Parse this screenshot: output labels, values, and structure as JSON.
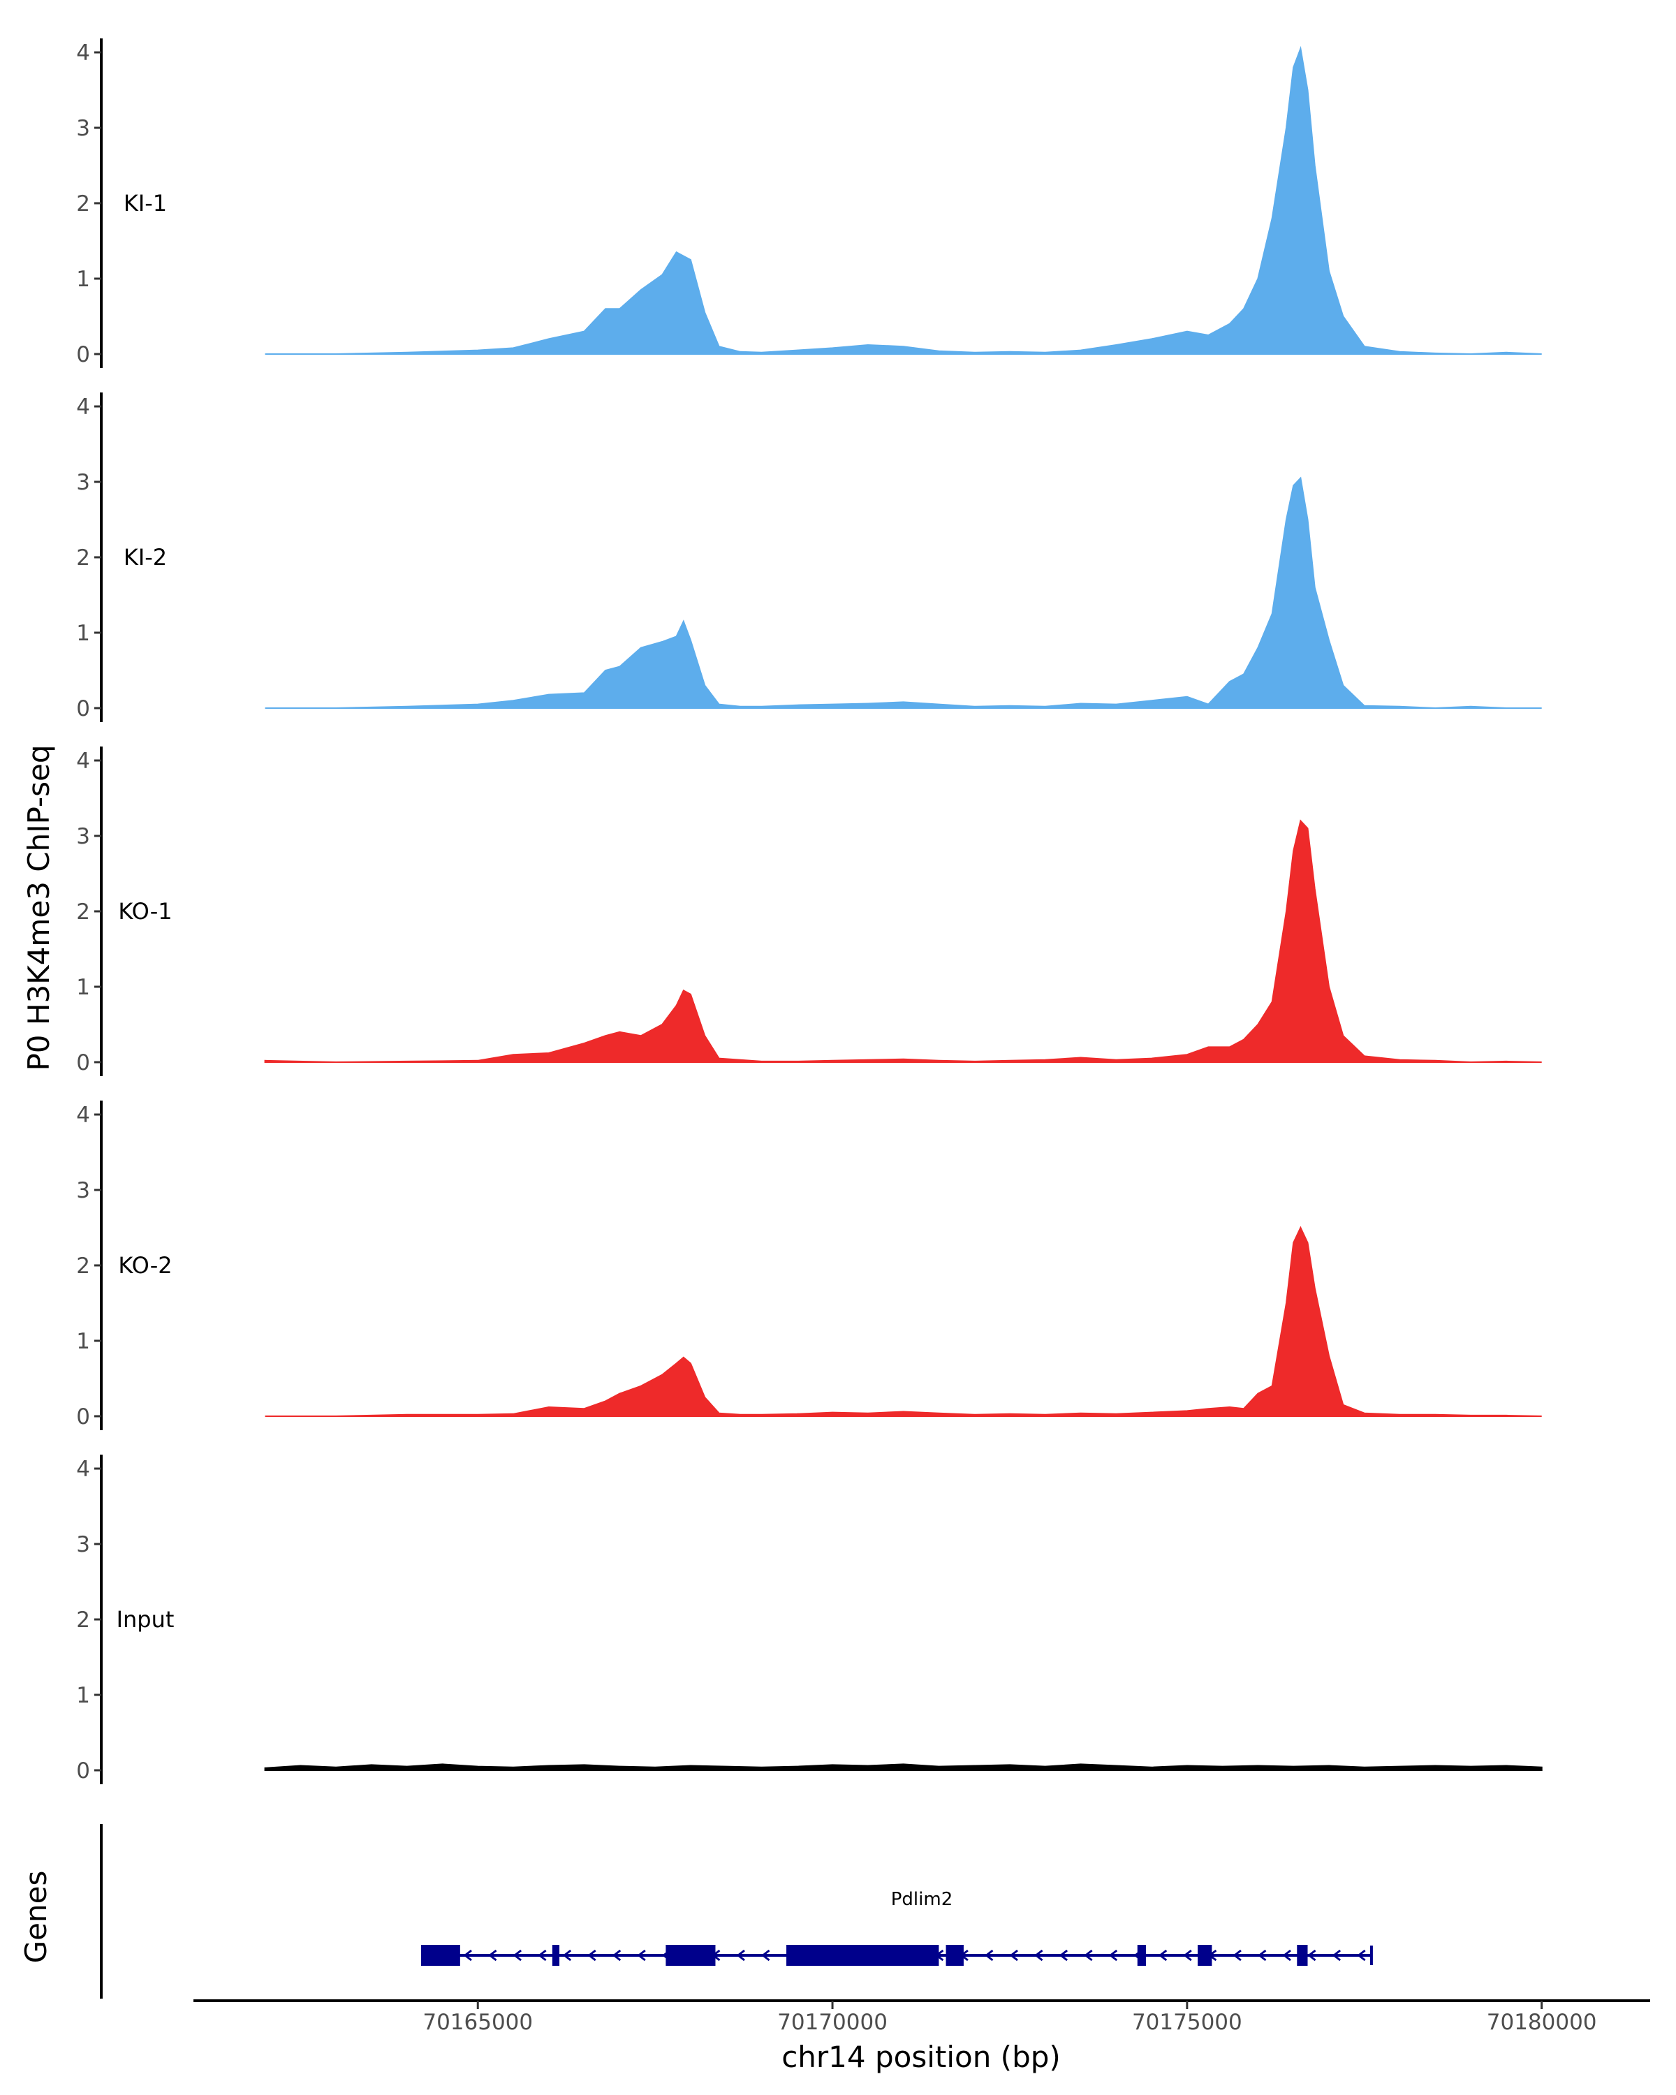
{
  "chart_data": {
    "type": "area",
    "ylabel": "P0 H3K4me3 ChIP-seq",
    "xlabel": "chr14 position (bp)",
    "xlim": [
      70161000,
      70181500
    ],
    "ylim": [
      0,
      4.2
    ],
    "y_ticks": [
      0,
      1,
      2,
      3,
      4
    ],
    "x_ticks": [
      70165000,
      70170000,
      70175000,
      70180000
    ],
    "x_tick_labels": [
      "70165000",
      "70170000",
      "70175000",
      "70180000"
    ],
    "grid": false,
    "tracks": [
      {
        "name": "KI-1",
        "color": "#5DADEC",
        "x": [
          70162000,
          70163000,
          70164000,
          70165000,
          70165500,
          70166000,
          70166500,
          70166800,
          70167000,
          70167300,
          70167600,
          70167800,
          70168000,
          70168200,
          70168400,
          70168700,
          70169000,
          70169500,
          70170000,
          70170500,
          70171000,
          70171500,
          70172000,
          70172500,
          70173000,
          70173500,
          70174000,
          70174500,
          70175000,
          70175300,
          70175600,
          70175800,
          70176000,
          70176200,
          70176400,
          70176500,
          70176600,
          70176700,
          70176800,
          70177000,
          70177200,
          70177500,
          70178000,
          70178500,
          70179000,
          70179500,
          70180000
        ],
        "y": [
          0.0,
          0.0,
          0.02,
          0.05,
          0.08,
          0.2,
          0.3,
          0.6,
          0.6,
          0.85,
          1.05,
          1.35,
          1.25,
          0.55,
          0.1,
          0.03,
          0.02,
          0.05,
          0.08,
          0.12,
          0.1,
          0.04,
          0.02,
          0.03,
          0.02,
          0.05,
          0.12,
          0.2,
          0.3,
          0.25,
          0.4,
          0.6,
          1.0,
          1.8,
          3.0,
          3.8,
          4.05,
          3.5,
          2.5,
          1.1,
          0.5,
          0.1,
          0.03,
          0.01,
          0.0,
          0.02,
          0.0
        ]
      },
      {
        "name": "KI-2",
        "color": "#5DADEC",
        "x": [
          70162000,
          70163000,
          70164000,
          70165000,
          70165500,
          70166000,
          70166500,
          70166800,
          70167000,
          70167300,
          70167600,
          70167800,
          70167900,
          70168000,
          70168200,
          70168400,
          70168700,
          70169000,
          70169500,
          70170000,
          70170500,
          70171000,
          70171500,
          70172000,
          70172500,
          70173000,
          70173500,
          70174000,
          70174500,
          70175000,
          70175300,
          70175600,
          70175800,
          70176000,
          70176200,
          70176400,
          70176500,
          70176600,
          70176700,
          70176800,
          70177000,
          70177200,
          70177500,
          70178000,
          70178500,
          70179000,
          70179500,
          70180000
        ],
        "y": [
          0.0,
          0.0,
          0.02,
          0.05,
          0.1,
          0.18,
          0.2,
          0.5,
          0.55,
          0.8,
          0.88,
          0.95,
          1.15,
          0.9,
          0.3,
          0.05,
          0.02,
          0.02,
          0.04,
          0.05,
          0.06,
          0.08,
          0.05,
          0.02,
          0.03,
          0.02,
          0.06,
          0.05,
          0.1,
          0.15,
          0.05,
          0.35,
          0.45,
          0.8,
          1.25,
          2.5,
          2.95,
          3.05,
          2.5,
          1.6,
          0.9,
          0.3,
          0.03,
          0.02,
          0.0,
          0.02,
          0.0,
          0.0
        ]
      },
      {
        "name": "KO-1",
        "color": "#EE2A2A",
        "x": [
          70162000,
          70163000,
          70164000,
          70165000,
          70165500,
          70166000,
          70166500,
          70166800,
          70167000,
          70167300,
          70167600,
          70167800,
          70167900,
          70168000,
          70168200,
          70168400,
          70168700,
          70169000,
          70169500,
          70170000,
          70170500,
          70171000,
          70171500,
          70172000,
          70172500,
          70173000,
          70173500,
          70174000,
          70174500,
          70175000,
          70175300,
          70175600,
          70175800,
          70176000,
          70176200,
          70176400,
          70176500,
          70176600,
          70176700,
          70176800,
          70177000,
          70177200,
          70177500,
          70178000,
          70178500,
          70179000,
          70179500,
          70180000
        ],
        "y": [
          0.02,
          0.0,
          0.01,
          0.02,
          0.1,
          0.12,
          0.25,
          0.35,
          0.4,
          0.35,
          0.5,
          0.75,
          0.95,
          0.9,
          0.35,
          0.05,
          0.03,
          0.01,
          0.01,
          0.02,
          0.03,
          0.04,
          0.02,
          0.01,
          0.02,
          0.03,
          0.06,
          0.03,
          0.05,
          0.1,
          0.2,
          0.2,
          0.3,
          0.5,
          0.8,
          2.0,
          2.8,
          3.2,
          3.1,
          2.3,
          1.0,
          0.35,
          0.08,
          0.03,
          0.02,
          0.0,
          0.01,
          0.0
        ]
      },
      {
        "name": "KO-2",
        "color": "#EE2A2A",
        "x": [
          70162000,
          70163000,
          70164000,
          70165000,
          70165500,
          70166000,
          70166500,
          70166800,
          70167000,
          70167300,
          70167600,
          70167800,
          70167900,
          70168000,
          70168200,
          70168400,
          70168700,
          70169000,
          70169500,
          70170000,
          70170500,
          70171000,
          70171500,
          70172000,
          70172500,
          70173000,
          70173500,
          70174000,
          70174500,
          70175000,
          70175300,
          70175600,
          70175800,
          70176000,
          70176200,
          70176400,
          70176500,
          70176600,
          70176700,
          70176800,
          70177000,
          70177200,
          70177500,
          70178000,
          70178500,
          70179000,
          70179500,
          70180000
        ],
        "y": [
          0.0,
          0.0,
          0.02,
          0.02,
          0.03,
          0.12,
          0.1,
          0.2,
          0.3,
          0.4,
          0.55,
          0.7,
          0.78,
          0.7,
          0.25,
          0.04,
          0.02,
          0.02,
          0.03,
          0.05,
          0.04,
          0.06,
          0.04,
          0.02,
          0.03,
          0.02,
          0.04,
          0.03,
          0.05,
          0.07,
          0.1,
          0.12,
          0.1,
          0.3,
          0.4,
          1.5,
          2.3,
          2.5,
          2.3,
          1.7,
          0.8,
          0.15,
          0.04,
          0.02,
          0.02,
          0.01,
          0.01,
          0.0
        ]
      },
      {
        "name": "Input",
        "color": "#000000",
        "x": [
          70162000,
          70162500,
          70163000,
          70163500,
          70164000,
          70164500,
          70165000,
          70165500,
          70166000,
          70166500,
          70167000,
          70167500,
          70168000,
          70168500,
          70169000,
          70169500,
          70170000,
          70170500,
          70171000,
          70171500,
          70172000,
          70172500,
          70173000,
          70173500,
          70174000,
          70174500,
          70175000,
          70175500,
          70176000,
          70176500,
          70177000,
          70177500,
          70178000,
          70178500,
          70179000,
          70179500,
          70180000
        ],
        "y": [
          0.03,
          0.06,
          0.04,
          0.07,
          0.05,
          0.08,
          0.05,
          0.04,
          0.06,
          0.07,
          0.05,
          0.04,
          0.06,
          0.05,
          0.04,
          0.05,
          0.07,
          0.06,
          0.08,
          0.05,
          0.06,
          0.07,
          0.05,
          0.08,
          0.06,
          0.04,
          0.06,
          0.05,
          0.06,
          0.05,
          0.06,
          0.04,
          0.05,
          0.06,
          0.05,
          0.06,
          0.04
        ]
      }
    ],
    "genes_panel": {
      "ylabel": "Genes",
      "gene": "Pdlim2",
      "color": "#00008B",
      "start": 70164200,
      "end": 70177600,
      "strand": "-",
      "exons": [
        [
          70164200,
          70164750
        ],
        [
          70166050,
          70166150
        ],
        [
          70167650,
          70168350
        ],
        [
          70169350,
          70171500
        ],
        [
          70171600,
          70171850
        ],
        [
          70174300,
          70174420
        ],
        [
          70175150,
          70175350
        ],
        [
          70176550,
          70176700
        ]
      ]
    }
  }
}
